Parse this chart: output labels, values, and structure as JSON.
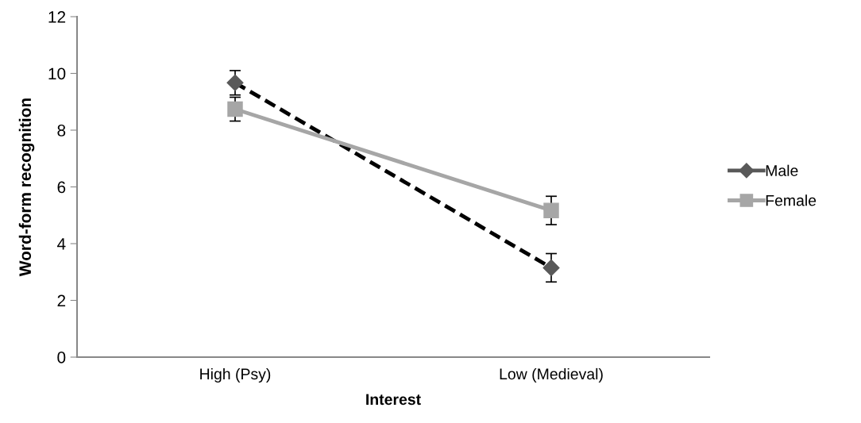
{
  "chart_data": {
    "type": "line",
    "xlabel": "Interest",
    "ylabel": "Word-form recognition",
    "categories": [
      "High (Psy)",
      "Low (Medieval)"
    ],
    "series": [
      {
        "name": "Male",
        "color": "#595959",
        "values": [
          9.67,
          3.15
        ],
        "errors": [
          0.43,
          0.5
        ],
        "marker": "diamond",
        "line_style": "dashed"
      },
      {
        "name": "Female",
        "color": "#a6a6a6",
        "values": [
          8.74,
          5.17
        ],
        "errors": [
          0.42,
          0.5
        ],
        "marker": "square",
        "line_style": "solid"
      }
    ],
    "ylim": [
      0,
      12
    ],
    "yticks": [
      0,
      2,
      4,
      6,
      8,
      10,
      12
    ],
    "grid": false,
    "legend": "right"
  }
}
